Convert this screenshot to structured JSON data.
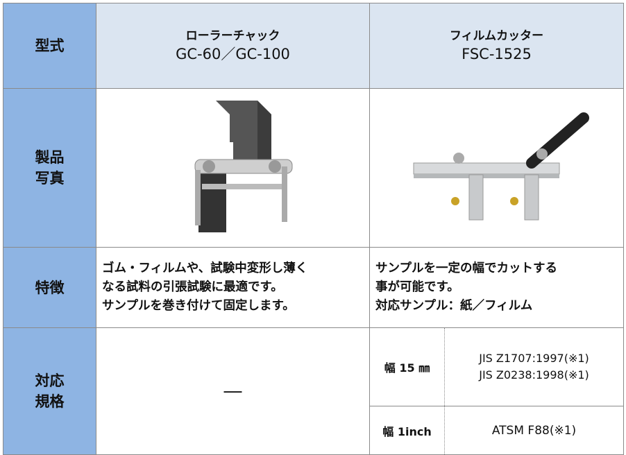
{
  "table": {
    "header": {
      "label": "型式",
      "columns": [
        {
          "name": "ローラーチャック",
          "model": "GC-60／GC-100"
        },
        {
          "name": "フィルムカッター",
          "model": "FSC-1525"
        }
      ]
    },
    "photo": {
      "label": [
        "製品",
        "写真"
      ]
    },
    "features": {
      "label": "特徴",
      "columns": [
        [
          "ゴム・フィルムや、試験中変形し薄く",
          "なる試料の引張試験に最適です。",
          "サンプルを巻き付けて固定します。"
        ],
        [
          "サンプルを一定の幅でカットする",
          "事が可能です。",
          "対応サンプル：紙／フィルム"
        ]
      ]
    },
    "standards": {
      "label": [
        "対応",
        "規格"
      ],
      "roller_chuck": "―",
      "film_cutter": [
        {
          "width": "幅 15 ㎜",
          "standards": [
            "JIS Z1707:1997(※1)",
            "JIS Z0238:1998(※1)"
          ]
        },
        {
          "width": "幅 1inch",
          "standards": [
            "ATSM F88(※1)"
          ]
        }
      ]
    }
  }
}
